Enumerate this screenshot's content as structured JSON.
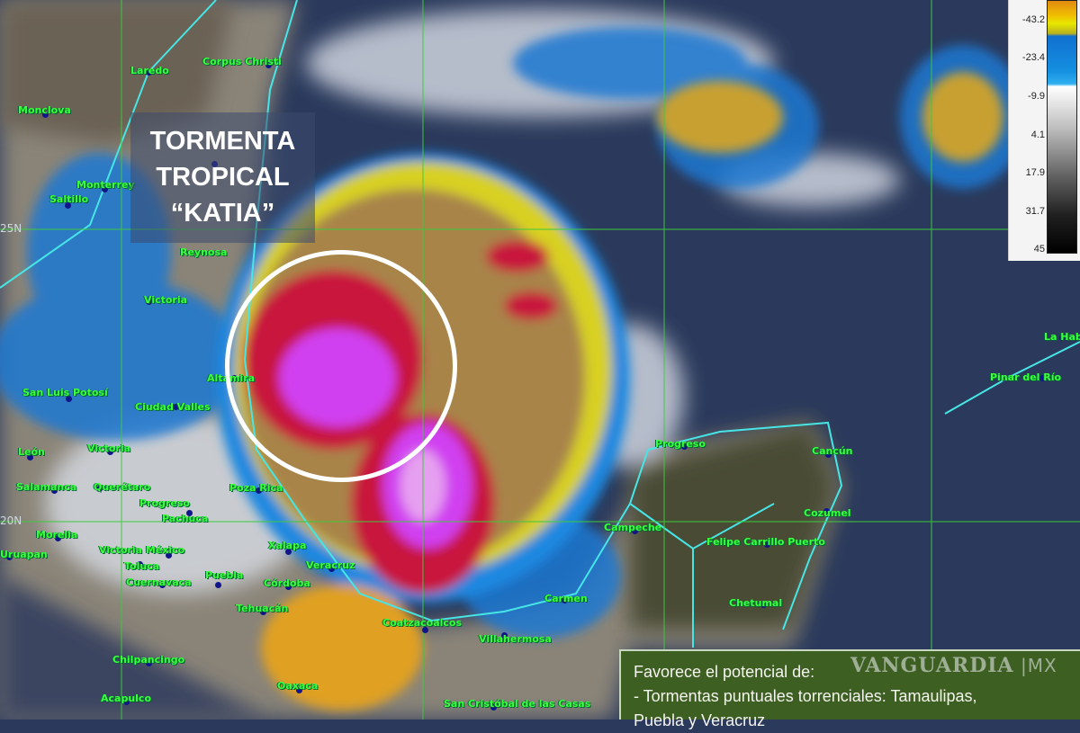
{
  "title": {
    "line1": "TORMENTA",
    "line2": "TROPICAL",
    "line3": "“KATIA”"
  },
  "legend": {
    "ticks": [
      "-43.2",
      "-23.4",
      "-9.9",
      "4.1",
      "17.9",
      "31.7",
      "45"
    ]
  },
  "latitude_labels": [
    "25N",
    "20N"
  ],
  "cities": [
    "Laredo",
    "Corpus Christi",
    "Monclova",
    "Monterrey",
    "Saltillo",
    "Reynosa",
    "Victoria",
    "Altamira",
    "San Luis Potosí",
    "Ciudad Valles",
    "León",
    "Victoria",
    "Salamanca",
    "Querétaro",
    "Progreso",
    "Pachuca",
    "Poza Rica",
    "Morelia",
    "Uruapan",
    "Victoria México",
    "Toluca",
    "Cuernavaca",
    "Puebla",
    "Xalapa",
    "Veracruz",
    "Córdoba",
    "Tehuacán",
    "Chilpancingo",
    "Acapulco",
    "Oaxaca",
    "Coatzacoalcos",
    "Villahermosa",
    "San Cristóbal de las Casas",
    "Carmen",
    "Campeche",
    "Progreso",
    "Cancún",
    "Cozumel",
    "Felipe Carrillo Puerto",
    "Chetumal",
    "Pinar del Río",
    "La Habana"
  ],
  "info": {
    "line1": "Favorece el potencial de:",
    "line2": "- Tormentas puntuales torrenciales: Tamaulipas,",
    "line3": "Puebla y Veracruz"
  },
  "watermark": {
    "brand": "VANGUARDIA",
    "suffix": "MX"
  },
  "colors": {
    "storm_core": "#d040f0",
    "storm_red": "#c8143c",
    "ocean": "#2b3a5c",
    "label_green": "#3cff3c",
    "info_bg": "#3e5f22"
  }
}
